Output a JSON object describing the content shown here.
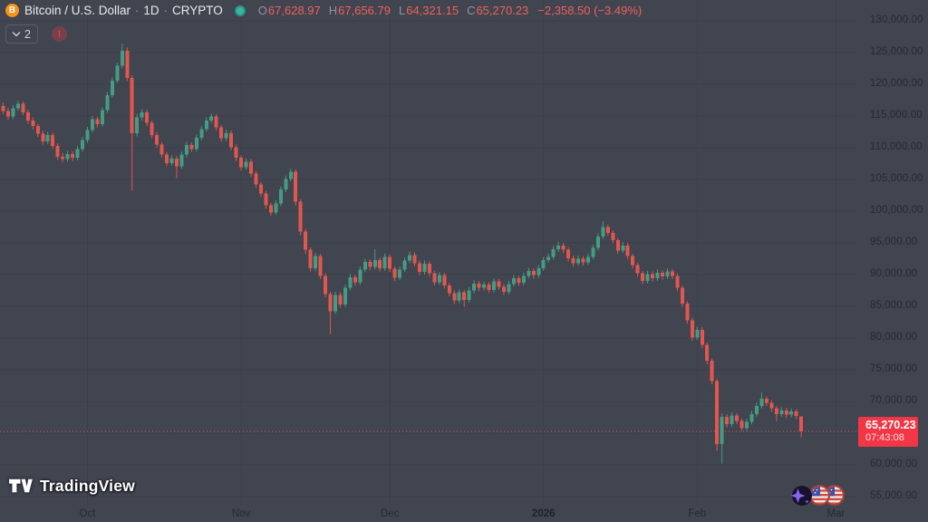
{
  "header": {
    "symbol": "Bitcoin / U.S. Dollar",
    "separator": "·",
    "interval": "1D",
    "exchange": "CRYPTO",
    "ohlc": {
      "o_label": "O",
      "o": "67,628.97",
      "h_label": "H",
      "h": "67,656.79",
      "l_label": "L",
      "l": "64,321.15",
      "c_label": "C",
      "c": "65,270.23",
      "change": "−2,358.50 (−3.49%)"
    },
    "indicator_count": "2",
    "warning": "!"
  },
  "price_scale": {
    "labels": [
      {
        "value": 130000,
        "text": "130,000.00"
      },
      {
        "value": 125000,
        "text": "125,000.00"
      },
      {
        "value": 120000,
        "text": "120,000.00"
      },
      {
        "value": 115000,
        "text": "115,000.00"
      },
      {
        "value": 110000,
        "text": "110,000.00"
      },
      {
        "value": 105000,
        "text": "105,000.00"
      },
      {
        "value": 100000,
        "text": "100,000.00"
      },
      {
        "value": 95000,
        "text": "95,000.00"
      },
      {
        "value": 90000,
        "text": "90,000.00"
      },
      {
        "value": 85000,
        "text": "85,000.00"
      },
      {
        "value": 80000,
        "text": "80,000.00"
      },
      {
        "value": 75000,
        "text": "75,000.00"
      },
      {
        "value": 70000,
        "text": "70,000.00"
      },
      {
        "value": 60000,
        "text": "60,000.00"
      },
      {
        "value": 55000,
        "text": "55,000.00"
      }
    ],
    "last": {
      "value": 65270.23,
      "price": "65,270.23",
      "countdown": "07:43:08"
    }
  },
  "time_scale": {
    "labels": [
      {
        "index": 17,
        "text": "Oct",
        "bold": false
      },
      {
        "index": 48,
        "text": "Nov",
        "bold": false
      },
      {
        "index": 78,
        "text": "Dec",
        "bold": false
      },
      {
        "index": 109,
        "text": "2026",
        "bold": true
      },
      {
        "index": 140,
        "text": "Feb",
        "bold": false
      },
      {
        "index": 168,
        "text": "Mar",
        "bold": false
      }
    ]
  },
  "footer": {
    "logo_text": "TradingView"
  },
  "colors": {
    "background": "#41454f",
    "up": "#459c84",
    "down": "#e2564f",
    "accent_red": "#f23645",
    "grid": "rgba(20,23,31,0.10)",
    "axis_text": "#252932"
  },
  "chart_data": {
    "type": "candlestick",
    "symbol": "BTCUSD",
    "interval": "1D",
    "title": "Bitcoin / U.S. Dollar 1D CRYPTO",
    "ylim": [
      55000,
      130000
    ],
    "grid_step": 5000,
    "x_axis_months": [
      "Oct",
      "Nov",
      "Dec",
      "2026",
      "Feb",
      "Mar"
    ],
    "last_close": 65270.23,
    "candles": [
      [
        116600,
        117100,
        115300,
        115800
      ],
      [
        115800,
        116300,
        114400,
        114900
      ],
      [
        114900,
        116700,
        114500,
        116200
      ],
      [
        116200,
        117400,
        115800,
        116900
      ],
      [
        116900,
        117300,
        115100,
        115600
      ],
      [
        115600,
        116000,
        113800,
        114300
      ],
      [
        114300,
        114800,
        112900,
        113400
      ],
      [
        113400,
        113800,
        111700,
        112200
      ],
      [
        112200,
        112700,
        110500,
        111000
      ],
      [
        111000,
        112500,
        110600,
        112000
      ],
      [
        112000,
        112400,
        109800,
        110300
      ],
      [
        110300,
        110700,
        108100,
        108600
      ],
      [
        108600,
        109200,
        107700,
        108200
      ],
      [
        108200,
        109500,
        107800,
        109000
      ],
      [
        109000,
        109400,
        107900,
        108400
      ],
      [
        108400,
        110300,
        108000,
        109800
      ],
      [
        109800,
        111700,
        109400,
        111200
      ],
      [
        111200,
        113300,
        110800,
        112800
      ],
      [
        112800,
        115000,
        112400,
        114500
      ],
      [
        114500,
        114900,
        113200,
        113700
      ],
      [
        113700,
        116400,
        113300,
        115900
      ],
      [
        115900,
        118800,
        115500,
        118300
      ],
      [
        118300,
        121100,
        117900,
        120600
      ],
      [
        120600,
        123400,
        120200,
        122900
      ],
      [
        122900,
        126400,
        122500,
        125300
      ],
      [
        125300,
        125800,
        120500,
        121000
      ],
      [
        121000,
        121400,
        103200,
        112300
      ],
      [
        112300,
        115300,
        111800,
        114800
      ],
      [
        114800,
        116100,
        114300,
        115600
      ],
      [
        115600,
        116000,
        113400,
        113900
      ],
      [
        113900,
        114300,
        111500,
        112000
      ],
      [
        112000,
        112400,
        110000,
        110500
      ],
      [
        110500,
        110900,
        108400,
        108900
      ],
      [
        108900,
        109300,
        107100,
        107600
      ],
      [
        107600,
        108800,
        107200,
        108300
      ],
      [
        108300,
        108700,
        105200,
        107100
      ],
      [
        107100,
        109400,
        106700,
        108900
      ],
      [
        108900,
        110900,
        108500,
        110400
      ],
      [
        110400,
        110800,
        109300,
        109800
      ],
      [
        109800,
        112100,
        109400,
        111600
      ],
      [
        111600,
        113400,
        111200,
        112900
      ],
      [
        112900,
        114800,
        112500,
        114300
      ],
      [
        114300,
        115400,
        113900,
        114900
      ],
      [
        114900,
        115300,
        112700,
        113200
      ],
      [
        113200,
        113600,
        111000,
        111500
      ],
      [
        111500,
        112800,
        111100,
        112300
      ],
      [
        112300,
        112700,
        109600,
        110100
      ],
      [
        110100,
        110500,
        107900,
        108400
      ],
      [
        108400,
        108800,
        106400,
        106900
      ],
      [
        106900,
        108300,
        106500,
        107800
      ],
      [
        107800,
        108200,
        105400,
        105900
      ],
      [
        105900,
        106300,
        103700,
        104200
      ],
      [
        104200,
        104600,
        102300,
        102800
      ],
      [
        102800,
        103200,
        100400,
        100900
      ],
      [
        100900,
        101300,
        99300,
        99800
      ],
      [
        99800,
        101700,
        99400,
        101200
      ],
      [
        101200,
        103900,
        100800,
        103400
      ],
      [
        103400,
        105600,
        103000,
        105100
      ],
      [
        105100,
        106700,
        104700,
        106200
      ],
      [
        106200,
        106600,
        100900,
        101500
      ],
      [
        101500,
        101900,
        96200,
        96800
      ],
      [
        96800,
        97200,
        93300,
        93900
      ],
      [
        93900,
        94300,
        90500,
        91000
      ],
      [
        91000,
        93400,
        90600,
        92900
      ],
      [
        92900,
        93300,
        89300,
        89800
      ],
      [
        89800,
        90200,
        86400,
        86900
      ],
      [
        86900,
        87300,
        80600,
        84200
      ],
      [
        84200,
        87300,
        83800,
        86800
      ],
      [
        86800,
        87200,
        84800,
        85300
      ],
      [
        85300,
        88400,
        84900,
        87900
      ],
      [
        87900,
        90100,
        87500,
        89600
      ],
      [
        89600,
        90000,
        88300,
        88800
      ],
      [
        88800,
        91300,
        88400,
        90800
      ],
      [
        90800,
        92500,
        90400,
        92000
      ],
      [
        92000,
        92400,
        90700,
        91200
      ],
      [
        91200,
        94000,
        90800,
        92300
      ],
      [
        92300,
        92700,
        90500,
        91000
      ],
      [
        91000,
        93300,
        90600,
        92800
      ],
      [
        92800,
        93200,
        90400,
        90900
      ],
      [
        90900,
        91300,
        89000,
        89500
      ],
      [
        89500,
        91300,
        89100,
        90800
      ],
      [
        90800,
        92700,
        90400,
        92200
      ],
      [
        92200,
        93600,
        91800,
        93100
      ],
      [
        93100,
        93500,
        91300,
        91800
      ],
      [
        91800,
        92200,
        89900,
        90400
      ],
      [
        90400,
        92200,
        90000,
        91700
      ],
      [
        91700,
        92100,
        89700,
        90200
      ],
      [
        90200,
        90600,
        88300,
        88800
      ],
      [
        88800,
        90400,
        88400,
        89900
      ],
      [
        89900,
        90300,
        87800,
        88300
      ],
      [
        88300,
        88700,
        86600,
        87100
      ],
      [
        87100,
        87500,
        85400,
        85900
      ],
      [
        85900,
        87700,
        85500,
        87200
      ],
      [
        87200,
        87600,
        84900,
        86000
      ],
      [
        86000,
        88000,
        85600,
        87500
      ],
      [
        87500,
        89100,
        87100,
        88600
      ],
      [
        88600,
        89000,
        87400,
        87900
      ],
      [
        87900,
        88900,
        87500,
        88400
      ],
      [
        88400,
        88800,
        87100,
        87600
      ],
      [
        87600,
        89400,
        87200,
        88900
      ],
      [
        88900,
        89300,
        87600,
        88100
      ],
      [
        88100,
        88500,
        86800,
        87300
      ],
      [
        87300,
        89000,
        86900,
        88500
      ],
      [
        88500,
        89900,
        88100,
        89400
      ],
      [
        89400,
        89800,
        88200,
        88700
      ],
      [
        88700,
        90300,
        88300,
        89800
      ],
      [
        89800,
        91100,
        89400,
        90600
      ],
      [
        90600,
        91000,
        89400,
        89900
      ],
      [
        89900,
        91500,
        89500,
        91000
      ],
      [
        91000,
        92800,
        90600,
        92300
      ],
      [
        92300,
        93300,
        91900,
        92800
      ],
      [
        92800,
        94500,
        92400,
        94000
      ],
      [
        94000,
        95100,
        93600,
        94600
      ],
      [
        94600,
        95000,
        93400,
        93900
      ],
      [
        93900,
        94300,
        92100,
        92600
      ],
      [
        92600,
        93000,
        91300,
        91800
      ],
      [
        91800,
        93000,
        91400,
        92500
      ],
      [
        92500,
        92900,
        91400,
        91900
      ],
      [
        91900,
        93300,
        91500,
        92800
      ],
      [
        92800,
        94700,
        92400,
        94200
      ],
      [
        94200,
        96500,
        93800,
        96000
      ],
      [
        96000,
        98400,
        95600,
        97500
      ],
      [
        97500,
        97900,
        96100,
        96600
      ],
      [
        96600,
        97000,
        94900,
        95400
      ],
      [
        95400,
        95800,
        93300,
        93800
      ],
      [
        93800,
        95100,
        93400,
        94600
      ],
      [
        94600,
        95000,
        92400,
        92900
      ],
      [
        92900,
        93300,
        91000,
        91500
      ],
      [
        91500,
        91900,
        89700,
        90200
      ],
      [
        90200,
        90600,
        88500,
        89000
      ],
      [
        89000,
        90600,
        88600,
        90100
      ],
      [
        90100,
        90500,
        88900,
        89400
      ],
      [
        89400,
        90800,
        89000,
        90300
      ],
      [
        90300,
        90700,
        89200,
        89700
      ],
      [
        89700,
        91000,
        89300,
        90500
      ],
      [
        90500,
        90900,
        89300,
        89800
      ],
      [
        89800,
        90200,
        87400,
        87900
      ],
      [
        87900,
        88300,
        84900,
        85400
      ],
      [
        85400,
        85800,
        82300,
        82800
      ],
      [
        82800,
        83200,
        79600,
        80100
      ],
      [
        80100,
        81800,
        79700,
        81300
      ],
      [
        81300,
        81700,
        78400,
        78900
      ],
      [
        78900,
        79300,
        75900,
        76400
      ],
      [
        76400,
        76800,
        72700,
        73200
      ],
      [
        73200,
        73600,
        62200,
        63300
      ],
      [
        63300,
        68100,
        60200,
        67600
      ],
      [
        67600,
        68000,
        65900,
        66400
      ],
      [
        66400,
        68300,
        66000,
        67800
      ],
      [
        67800,
        68200,
        66400,
        66900
      ],
      [
        66900,
        67300,
        65300,
        65800
      ],
      [
        65800,
        67300,
        65400,
        66800
      ],
      [
        66800,
        68500,
        66400,
        68000
      ],
      [
        68000,
        69800,
        67600,
        69300
      ],
      [
        69300,
        71400,
        68900,
        70400
      ],
      [
        70400,
        70800,
        69300,
        69800
      ],
      [
        69800,
        70200,
        68400,
        68900
      ],
      [
        68900,
        69300,
        66900,
        68000
      ],
      [
        68000,
        69100,
        67600,
        68600
      ],
      [
        68600,
        69000,
        67400,
        67900
      ],
      [
        67900,
        68900,
        67500,
        68400
      ],
      [
        68400,
        68800,
        67200,
        67700
      ],
      [
        67628.97,
        67656.79,
        64321.15,
        65270.23
      ]
    ]
  }
}
